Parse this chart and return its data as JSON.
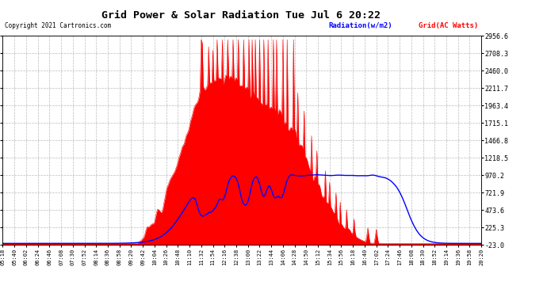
{
  "title": "Grid Power & Solar Radiation Tue Jul 6 20:22",
  "copyright": "Copyright 2021 Cartronics.com",
  "legend_radiation": "Radiation(w/m2)",
  "legend_grid": "Grid(AC Watts)",
  "ylabel_right_values": [
    2956.6,
    2708.3,
    2460.0,
    2211.7,
    1963.4,
    1715.1,
    1466.8,
    1218.5,
    970.2,
    721.9,
    473.6,
    225.3,
    -23.0
  ],
  "ymin": -23.0,
  "ymax": 2956.6,
  "background_color": "#ffffff",
  "plot_bg_color": "#ffffff",
  "grid_color": "#bbbbbb",
  "radiation_color": "#0000ff",
  "grid_power_color": "#ff0000",
  "grid_power_fill": "#ff0000"
}
